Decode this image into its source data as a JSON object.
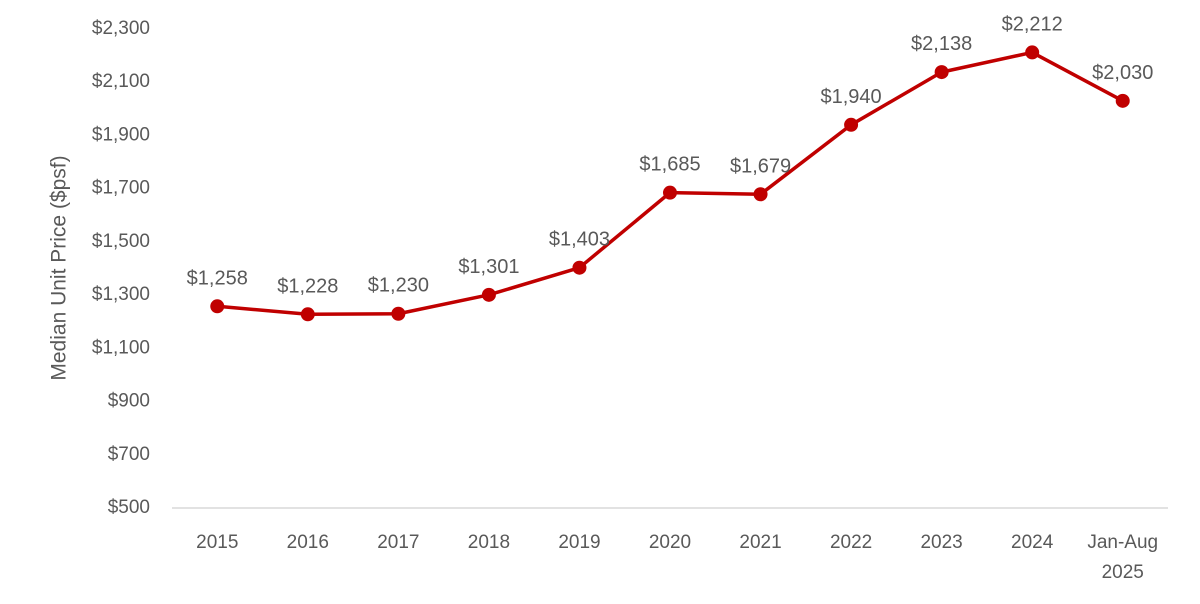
{
  "chart_data": {
    "type": "line",
    "title": "",
    "xlabel": "",
    "ylabel": "Median Unit  Price ($psf)",
    "categories": [
      "2015",
      "2016",
      "2017",
      "2018",
      "2019",
      "2020",
      "2021",
      "2022",
      "2023",
      "2024",
      "Jan-Aug 2025"
    ],
    "series": [
      {
        "name": "",
        "values": [
          1258,
          1228,
          1230,
          1301,
          1403,
          1685,
          1679,
          1940,
          2138,
          2212,
          2030
        ],
        "labels": [
          "$1,258",
          "$1,228",
          "$1,230",
          "$1,301",
          "$1,403",
          "$1,685",
          "$1,679",
          "$1,940",
          "$2,138",
          "$2,212",
          "$2,030"
        ]
      }
    ],
    "ylim": [
      500,
      2300
    ],
    "yticks": [
      500,
      700,
      900,
      1100,
      1300,
      1500,
      1700,
      1900,
      2100,
      2300
    ],
    "ytick_labels": [
      "$500",
      "$700",
      "$900",
      "$1,100",
      "$1,300",
      "$1,500",
      "$1,700",
      "$1,900",
      "$2,100",
      "$2,300"
    ],
    "grid": false,
    "legend": "none",
    "colors": {
      "line": "#C00000",
      "axis": "#D9D9D9",
      "text": "#595959"
    }
  }
}
